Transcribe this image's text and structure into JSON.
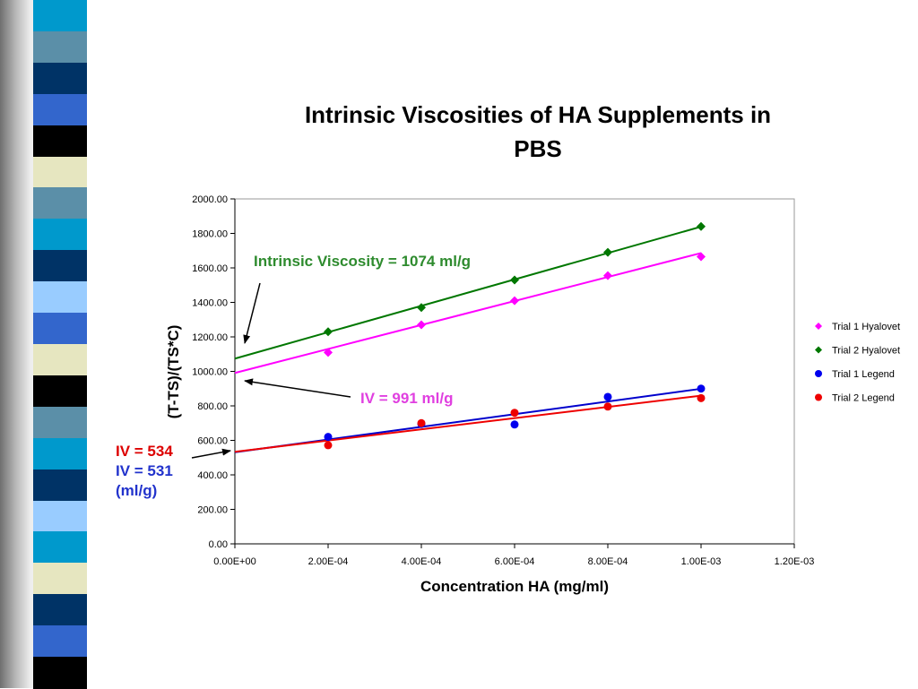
{
  "slide": {
    "stripe_colors": [
      "#0099cc",
      "#5b8fa8",
      "#003366",
      "#3366cc",
      "#000000",
      "#e6e6c0",
      "#5b8fa8",
      "#0099cc",
      "#003366",
      "#99ccff",
      "#3366cc",
      "#e6e6c0",
      "#000000",
      "#5b8fa8",
      "#0099cc",
      "#003366",
      "#99ccff",
      "#0099cc",
      "#e6e6c0",
      "#003366",
      "#3366cc",
      "#000000"
    ]
  },
  "chart_data": {
    "type": "scatter",
    "title_lines": [
      "Intrinsic Viscosities of HA Supplements in",
      "PBS"
    ],
    "xlabel": "Concentration HA (mg/ml)",
    "ylabel": "(T-TS)/(TS*C)",
    "xlim": [
      0,
      0.0012
    ],
    "ylim": [
      0,
      2000
    ],
    "x_ticks": [
      0,
      0.0002,
      0.0004,
      0.0006,
      0.0008,
      0.001,
      0.0012
    ],
    "x_tick_labels": [
      "0.00E+00",
      "2.00E-04",
      "4.00E-04",
      "6.00E-04",
      "8.00E-04",
      "1.00E-03",
      "1.20E-03"
    ],
    "y_ticks": [
      0,
      200,
      400,
      600,
      800,
      1000,
      1200,
      1400,
      1600,
      1800,
      2000
    ],
    "y_tick_labels": [
      "0.00",
      "200.00",
      "400.00",
      "600.00",
      "800.00",
      "1000.00",
      "1200.00",
      "1400.00",
      "1600.00",
      "1800.00",
      "2000.00"
    ],
    "grid": false,
    "legend_position": "right",
    "series": [
      {
        "name": "Trial 1 Hyalovet",
        "color": "#ff00ff",
        "marker": "diamond",
        "x": [
          0.0002,
          0.0004,
          0.0006,
          0.0008,
          0.001
        ],
        "y": [
          1110,
          1270,
          1410,
          1555,
          1665
        ],
        "trendline": {
          "intercept": 991,
          "slope": 695000,
          "color": "#ff00ff"
        }
      },
      {
        "name": "Trial 2 Hyalovet",
        "color": "#007700",
        "marker": "diamond",
        "x": [
          0.0002,
          0.0004,
          0.0006,
          0.0008,
          0.001
        ],
        "y": [
          1230,
          1370,
          1530,
          1690,
          1840
        ],
        "trendline": {
          "intercept": 1074,
          "slope": 765000,
          "color": "#007700"
        }
      },
      {
        "name": "Trial 1 Legend",
        "color": "#0000ee",
        "marker": "circle",
        "x": [
          0.0002,
          0.0004,
          0.0006,
          0.0008,
          0.001
        ],
        "y": [
          620,
          695,
          692,
          852,
          900
        ],
        "trendline": {
          "intercept": 531,
          "slope": 368000,
          "color": "#0000cc"
        }
      },
      {
        "name": "Trial 2 Legend",
        "color": "#ee0000",
        "marker": "circle",
        "x": [
          0.0002,
          0.0004,
          0.0006,
          0.0008,
          0.001
        ],
        "y": [
          572,
          700,
          760,
          796,
          845
        ],
        "trendline": {
          "intercept": 534,
          "slope": 325000,
          "color": "#ee0000"
        }
      }
    ],
    "annotations": [
      {
        "text": "Intrinsic Viscosity = 1074 ml/g",
        "color": "#2e8b2e"
      },
      {
        "text": "IV = 991 ml/g",
        "color": "#e040e0"
      },
      {
        "text": "IV = 534",
        "color": "#dd0000"
      },
      {
        "text": "IV = 531",
        "color": "#2233cc"
      },
      {
        "text": "(ml/g)",
        "color": "#2233cc"
      }
    ]
  }
}
